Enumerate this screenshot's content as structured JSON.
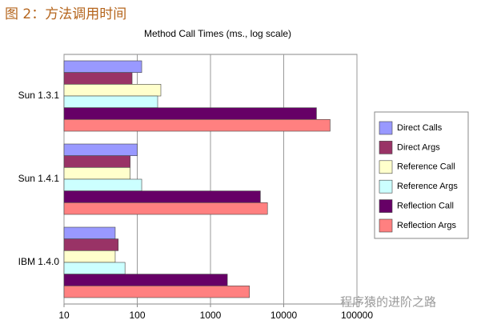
{
  "header": {
    "title": "图 2：方法调用时间"
  },
  "chart_data": {
    "type": "hbar",
    "title": "Method Call Times (ms., log scale)",
    "categories": [
      "Sun 1.3.1",
      "Sun 1.4.1",
      "IBM 1.4.0"
    ],
    "series": [
      {
        "name": "Direct Calls",
        "color": "#9999ff",
        "values": [
          115,
          100,
          50
        ]
      },
      {
        "name": "Direct Args",
        "color": "#993366",
        "values": [
          85,
          80,
          55
        ]
      },
      {
        "name": "Reference Call",
        "color": "#ffffcc",
        "values": [
          210,
          80,
          50
        ]
      },
      {
        "name": "Reference Args",
        "color": "#ccffff",
        "values": [
          190,
          115,
          68
        ]
      },
      {
        "name": "Reflection Call",
        "color": "#660066",
        "values": [
          28000,
          4800,
          1700
        ]
      },
      {
        "name": "Reflection Args",
        "color": "#ff8080",
        "values": [
          43000,
          6000,
          3400
        ]
      }
    ],
    "xlim": [
      10,
      100000
    ],
    "xticks": [
      10,
      100,
      1000,
      10000,
      100000
    ],
    "log_scale": true,
    "grid": true,
    "legend": "right"
  },
  "watermark": "程序猿的进阶之路"
}
